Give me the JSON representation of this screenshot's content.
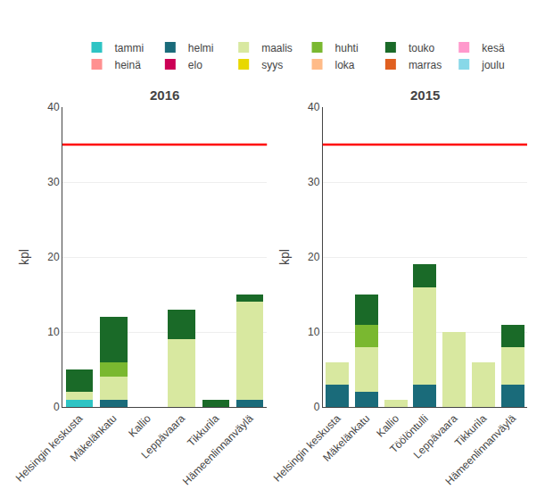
{
  "chart_data": [
    {
      "type": "bar",
      "title": "2016",
      "ylabel": "kpl",
      "stacked": true,
      "grid": true,
      "legend": "top",
      "categories": [
        "Helsingin keskusta",
        "Mäkelänkatu",
        "Kallio",
        "Leppävaara",
        "Tikkurila",
        "Hämeenlinnanväylä"
      ],
      "ylim": [
        0,
        40
      ],
      "yticks": [
        0,
        10,
        20,
        30,
        40
      ],
      "reference_line": {
        "y": 35,
        "color": "red"
      },
      "series": [
        {
          "name": "tammi",
          "color": "#2ec4c4",
          "values": [
            1,
            0,
            0,
            0,
            0,
            0
          ]
        },
        {
          "name": "helmi",
          "color": "#1a6b7a",
          "values": [
            0,
            1,
            0,
            0,
            0,
            1
          ]
        },
        {
          "name": "maalis",
          "color": "#d8e8a0",
          "values": [
            1,
            3,
            0,
            9,
            0,
            13
          ]
        },
        {
          "name": "huhti",
          "color": "#7ab830",
          "values": [
            0,
            2,
            0,
            0,
            0,
            0
          ]
        },
        {
          "name": "touko",
          "color": "#1a6a28",
          "values": [
            3,
            6,
            0,
            4,
            1,
            1
          ]
        },
        {
          "name": "kesä",
          "color": "#ff99cc",
          "values": [
            0,
            0,
            0,
            0,
            0,
            0
          ]
        },
        {
          "name": "heinä",
          "color": "#ff9090",
          "values": [
            0,
            0,
            0,
            0,
            0,
            0
          ]
        },
        {
          "name": "elo",
          "color": "#cc0055",
          "values": [
            0,
            0,
            0,
            0,
            0,
            0
          ]
        },
        {
          "name": "syys",
          "color": "#e8d800",
          "values": [
            0,
            0,
            0,
            0,
            0,
            0
          ]
        },
        {
          "name": "loka",
          "color": "#ffbb88",
          "values": [
            0,
            0,
            0,
            0,
            0,
            0
          ]
        },
        {
          "name": "marras",
          "color": "#e06020",
          "values": [
            0,
            0,
            0,
            0,
            0,
            0
          ]
        },
        {
          "name": "joulu",
          "color": "#88d8e8",
          "values": [
            0,
            0,
            0,
            0,
            0,
            0
          ]
        }
      ]
    },
    {
      "type": "bar",
      "title": "2015",
      "ylabel": "kpl",
      "stacked": true,
      "grid": true,
      "legend": "top",
      "categories": [
        "Helsingin keskusta",
        "Mäkelänkatu",
        "Kallio",
        "Töölöntulli",
        "Leppävaara",
        "Tikkurila",
        "Hämeenlinnanväylä"
      ],
      "ylim": [
        0,
        40
      ],
      "yticks": [
        0,
        10,
        20,
        30,
        40
      ],
      "reference_line": {
        "y": 35,
        "color": "red"
      },
      "series": [
        {
          "name": "tammi",
          "color": "#2ec4c4",
          "values": [
            0,
            0,
            0,
            0,
            0,
            0,
            0
          ]
        },
        {
          "name": "helmi",
          "color": "#1a6b7a",
          "values": [
            3,
            2,
            0,
            3,
            0,
            0,
            3
          ]
        },
        {
          "name": "maalis",
          "color": "#d8e8a0",
          "values": [
            3,
            6,
            1,
            13,
            10,
            6,
            5
          ]
        },
        {
          "name": "huhti",
          "color": "#7ab830",
          "values": [
            0,
            3,
            0,
            0,
            0,
            0,
            0
          ]
        },
        {
          "name": "touko",
          "color": "#1a6a28",
          "values": [
            0,
            4,
            0,
            3,
            0,
            0,
            3
          ]
        },
        {
          "name": "kesä",
          "color": "#ff99cc",
          "values": [
            0,
            0,
            0,
            0,
            0,
            0,
            0
          ]
        },
        {
          "name": "heinä",
          "color": "#ff9090",
          "values": [
            0,
            0,
            0,
            0,
            0,
            0,
            0
          ]
        },
        {
          "name": "elo",
          "color": "#cc0055",
          "values": [
            0,
            0,
            0,
            0,
            0,
            0,
            0
          ]
        },
        {
          "name": "syys",
          "color": "#e8d800",
          "values": [
            0,
            0,
            0,
            0,
            0,
            0,
            0
          ]
        },
        {
          "name": "loka",
          "color": "#ffbb88",
          "values": [
            0,
            0,
            0,
            0,
            0,
            0,
            0
          ]
        },
        {
          "name": "marras",
          "color": "#e06020",
          "values": [
            0,
            0,
            0,
            0,
            0,
            0,
            0
          ]
        },
        {
          "name": "joulu",
          "color": "#88d8e8",
          "values": [
            0,
            0,
            0,
            0,
            0,
            0,
            0
          ]
        }
      ]
    }
  ]
}
